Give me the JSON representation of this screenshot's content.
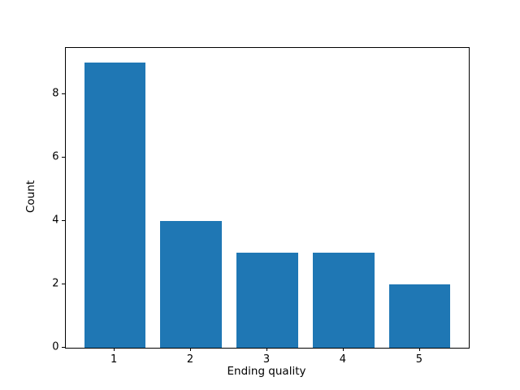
{
  "chart_data": {
    "type": "bar",
    "categories": [
      "1",
      "2",
      "3",
      "4",
      "5"
    ],
    "x": [
      1,
      2,
      3,
      4,
      5
    ],
    "values": [
      9,
      4,
      3,
      3,
      2
    ],
    "title": "",
    "xlabel": "Ending quality",
    "ylabel": "Count",
    "yticks": [
      0,
      2,
      4,
      6,
      8
    ],
    "ylim": [
      0,
      9.45
    ],
    "xlim": [
      0.36,
      5.64
    ],
    "bar_width": 0.8,
    "bar_color": "#1f77b4",
    "axes_color": "#000000",
    "background_color": "#ffffff",
    "grid": false,
    "legend": null
  }
}
